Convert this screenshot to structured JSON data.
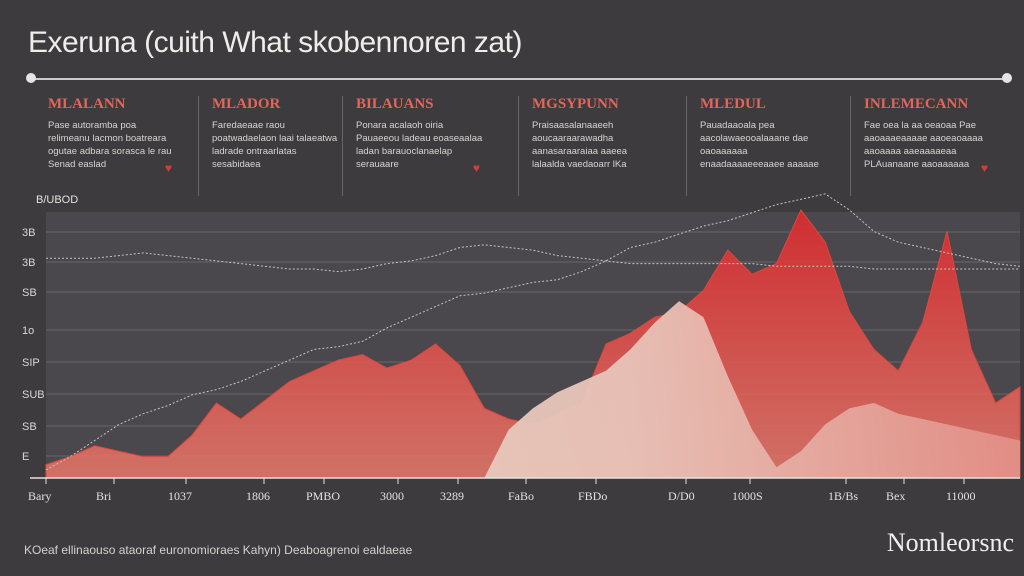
{
  "title": "Exeruna (cuith What skobennoren zat)",
  "annotations": [
    {
      "head": "MLALANN",
      "body": "Pase autoramba poa relimeanu lacmon boatreara ogutae adbara sorasca le rau Senad easlad",
      "heart": true
    },
    {
      "head": "MLADOR",
      "body": "Faredaeaae raou poatwadaelaon laai talaeatwa ladrade ontraarlatas sesabidaea",
      "heart": false
    },
    {
      "head": "BILAUANS",
      "body": "Ponara acalaoh oiria Pauaeeou ladeau eoaseaalaa ladan barauoclanaelap serauaare",
      "heart": true
    },
    {
      "head": "MGSYPUNN",
      "body": "Praisaasalanaaeeh aoucaaraarawadha aanasaraaraiaa aaeea lalaalda vaedaoarr lKa",
      "heart": false
    },
    {
      "head": "MLEDUL",
      "body": "Pauadaaoala pea aacolawaeooalaaane dae oaoaaaaaa enaadaaaaeeeaaee aaaaae",
      "heart": false
    },
    {
      "head": "INLEMECANN",
      "body": "Fae oea la aa oeaoaa Pae aaoaaaeaaaae aaoeaoaaaa aaoaaaa aaeaaaaeaa PLAuanaane aaoaaaaaa",
      "heart": true
    }
  ],
  "footer": "KOeaf ellinaouso ataoraf euronomioraes Kahyn) Deaboagrenoi ealdaeae",
  "brand": "Nomleorsnc",
  "colors": {
    "background": "#3d3b3e",
    "plot_bg": "#4a484c",
    "accent_red": "#d62b2f",
    "light_fill": "#e3d9c9",
    "dashed": "#c9c4c2",
    "grid": "#6a6668"
  },
  "chart_data": {
    "type": "area",
    "title": "Exeruna (cuith What skobennoren zat)",
    "xlabel": "",
    "ylabel": "",
    "y_axis_label": "B/UBOD",
    "y_ticks": [
      "3B",
      "3B",
      "SB",
      "1o",
      "SIP",
      "SUB",
      "SB",
      "E"
    ],
    "x_ticks": [
      "Bary",
      "Bri",
      "1037",
      "1806",
      "PMBO",
      "3000",
      "3289",
      "FaBo",
      "FBDo",
      "D/D0",
      "1000S",
      "1B/Bs",
      "Bex",
      "11000"
    ],
    "grid": true,
    "x": [
      0,
      1,
      2,
      3,
      4,
      5,
      6,
      7,
      8,
      9,
      10,
      11,
      12,
      13,
      14,
      15,
      16,
      17,
      18,
      19,
      20,
      21,
      22,
      23,
      24,
      25,
      26,
      27,
      28,
      29,
      30,
      31,
      32,
      33,
      34,
      35,
      36,
      37,
      38,
      39,
      40
    ],
    "ylim": [
      0,
      100
    ],
    "series": [
      {
        "name": "",
        "style": "dashed-upper",
        "values": [
          82,
          82,
          82,
          83,
          84,
          83,
          82,
          81,
          80,
          79,
          78,
          78,
          77,
          78,
          80,
          81,
          83,
          86,
          87,
          86,
          85,
          83,
          82,
          81,
          80,
          80,
          80,
          80,
          80,
          80,
          79,
          79,
          79,
          79,
          78,
          78,
          78,
          78,
          78,
          78,
          78
        ]
      },
      {
        "name": "",
        "style": "dashed-lower",
        "values": [
          3,
          8,
          14,
          20,
          24,
          27,
          31,
          33,
          36,
          40,
          44,
          48,
          49,
          51,
          56,
          60,
          64,
          68,
          69,
          71,
          73,
          74,
          77,
          81,
          86,
          88,
          91,
          94,
          96,
          99,
          102,
          104,
          106,
          100,
          92,
          88,
          86,
          84,
          82,
          80,
          79
        ]
      },
      {
        "name": "",
        "style": "red-area",
        "values": [
          5,
          8,
          12,
          10,
          8,
          8,
          16,
          28,
          22,
          29,
          36,
          40,
          44,
          46,
          41,
          44,
          50,
          42,
          26,
          22,
          20,
          24,
          28,
          50,
          54,
          60,
          62,
          70,
          85,
          76,
          80,
          100,
          88,
          62,
          48,
          40,
          58,
          92,
          48,
          28,
          34
        ]
      },
      {
        "name": "",
        "style": "light-area",
        "values": [
          0,
          0,
          0,
          0,
          0,
          0,
          0,
          0,
          0,
          0,
          0,
          0,
          0,
          0,
          0,
          0,
          0,
          0,
          0,
          18,
          26,
          32,
          36,
          40,
          48,
          58,
          66,
          60,
          38,
          18,
          4,
          10,
          20,
          26,
          28,
          24,
          22,
          20,
          18,
          16,
          14
        ]
      }
    ]
  }
}
